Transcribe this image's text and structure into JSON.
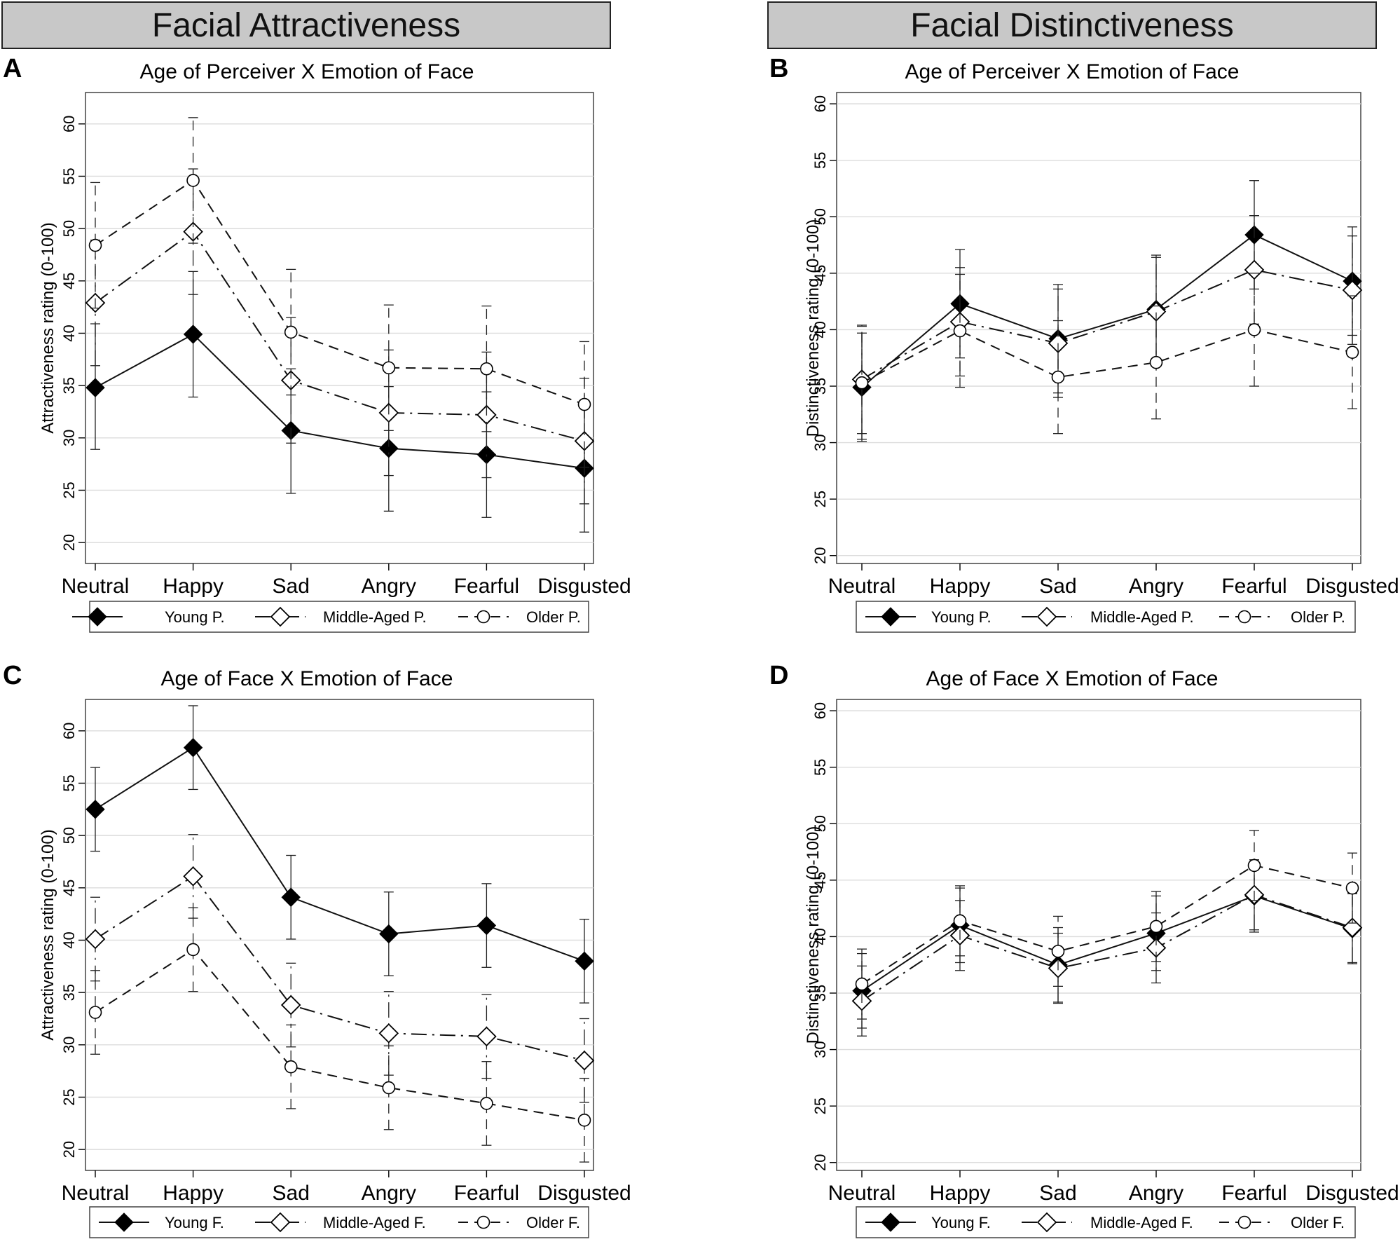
{
  "section_titles": {
    "attractiveness": "Facial Attractiveness",
    "distinctiveness": "Facial Distinctiveness"
  },
  "chart_data": [
    {
      "panel": "A",
      "type": "line",
      "title": "Age of Perceiver X Emotion of Face",
      "ylabel": "Attractiveness rating (0-100)",
      "xlabel": "",
      "ylim": [
        18,
        63
      ],
      "yticks": [
        20,
        25,
        30,
        35,
        40,
        45,
        50,
        55,
        60
      ],
      "categories": [
        "Neutral",
        "Happy",
        "Sad",
        "Angry",
        "Fearful",
        "Disgusted"
      ],
      "series": [
        {
          "name": "Young P.",
          "marker": "diamond-filled",
          "dash": "solid",
          "values": [
            34.8,
            39.9,
            30.7,
            29.0,
            28.4,
            27.1
          ],
          "lower": [
            28.9,
            33.9,
            24.7,
            23.0,
            22.4,
            21.0
          ],
          "upper": [
            40.9,
            45.9,
            36.6,
            34.9,
            34.4,
            33.2
          ]
        },
        {
          "name": "Middle-Aged P.",
          "marker": "diamond-open",
          "dash": "dashdot",
          "values": [
            42.9,
            49.7,
            35.5,
            32.4,
            32.2,
            29.7
          ],
          "lower": [
            36.9,
            43.7,
            29.5,
            26.4,
            26.2,
            23.7
          ],
          "upper": [
            48.9,
            55.7,
            41.5,
            38.4,
            38.2,
            35.7
          ]
        },
        {
          "name": "Older P.",
          "marker": "circle-open",
          "dash": "dashed",
          "values": [
            48.4,
            54.6,
            40.1,
            36.7,
            36.6,
            33.2
          ],
          "lower": [
            42.4,
            48.6,
            34.1,
            30.7,
            30.6,
            27.2
          ],
          "upper": [
            54.4,
            60.6,
            46.1,
            42.7,
            42.6,
            39.2
          ]
        }
      ]
    },
    {
      "panel": "B",
      "type": "line",
      "title": "Age of Perceiver X Emotion of Face",
      "ylabel": "Distinctiveness rating (0-100)",
      "xlabel": "",
      "ylim": [
        19.3,
        61
      ],
      "yticks": [
        20,
        25,
        30,
        35,
        40,
        45,
        50,
        55,
        60
      ],
      "categories": [
        "Neutral",
        "Happy",
        "Sad",
        "Angry",
        "Fearful",
        "Disgusted"
      ],
      "series": [
        {
          "name": "Young P.",
          "marker": "diamond-filled",
          "dash": "solid",
          "values": [
            34.9,
            42.3,
            39.2,
            41.8,
            48.4,
            44.3
          ],
          "lower": [
            30.1,
            37.5,
            34.4,
            37.0,
            43.6,
            39.5
          ],
          "upper": [
            39.7,
            47.1,
            44.0,
            46.6,
            53.2,
            49.1
          ]
        },
        {
          "name": "Middle-Aged P.",
          "marker": "diamond-open",
          "dash": "dashdot",
          "values": [
            35.6,
            40.7,
            38.8,
            41.6,
            45.3,
            43.5
          ],
          "lower": [
            30.8,
            35.9,
            34.0,
            36.8,
            40.5,
            38.7
          ],
          "upper": [
            40.4,
            45.5,
            43.6,
            46.4,
            50.1,
            48.3
          ]
        },
        {
          "name": "Older P.",
          "marker": "circle-open",
          "dash": "dashed",
          "values": [
            35.3,
            39.9,
            35.8,
            37.1,
            40.0,
            38.0
          ],
          "lower": [
            30.3,
            34.9,
            30.8,
            32.1,
            35.0,
            33.0
          ],
          "upper": [
            40.3,
            44.9,
            40.8,
            42.1,
            45.0,
            43.0
          ]
        }
      ]
    },
    {
      "panel": "C",
      "type": "line",
      "title": "Age of Face X Emotion of Face",
      "ylabel": "Attractiveness rating (0-100)",
      "xlabel": "",
      "ylim": [
        18,
        63
      ],
      "yticks": [
        20,
        25,
        30,
        35,
        40,
        45,
        50,
        55,
        60
      ],
      "categories": [
        "Neutral",
        "Happy",
        "Sad",
        "Angry",
        "Fearful",
        "Disgusted"
      ],
      "series": [
        {
          "name": "Young F.",
          "marker": "diamond-filled",
          "dash": "solid",
          "values": [
            52.5,
            58.4,
            44.1,
            40.6,
            41.4,
            38.0
          ],
          "lower": [
            48.5,
            54.4,
            40.1,
            36.6,
            37.4,
            34.0
          ],
          "upper": [
            56.5,
            62.4,
            48.1,
            44.6,
            45.4,
            42.0
          ]
        },
        {
          "name": "Middle-Aged F.",
          "marker": "diamond-open",
          "dash": "dashdot",
          "values": [
            40.1,
            46.1,
            33.8,
            31.1,
            30.8,
            28.5
          ],
          "lower": [
            36.1,
            42.1,
            29.8,
            27.1,
            26.8,
            24.5
          ],
          "upper": [
            44.1,
            50.1,
            37.8,
            35.1,
            34.8,
            32.5
          ]
        },
        {
          "name": "Older F.",
          "marker": "circle-open",
          "dash": "dashed",
          "values": [
            33.1,
            39.1,
            27.9,
            25.9,
            24.4,
            22.8
          ],
          "lower": [
            29.1,
            35.1,
            23.9,
            21.9,
            20.4,
            18.8
          ],
          "upper": [
            37.1,
            43.1,
            31.9,
            29.9,
            28.4,
            26.8
          ]
        }
      ]
    },
    {
      "panel": "D",
      "type": "line",
      "title": "Age of Face X Emotion of Face",
      "ylabel": "Distinctiveness rating (0-100)",
      "xlabel": "",
      "ylim": [
        19.3,
        61
      ],
      "yticks": [
        20,
        25,
        30,
        35,
        40,
        45,
        50,
        55,
        60
      ],
      "categories": [
        "Neutral",
        "Happy",
        "Sad",
        "Angry",
        "Fearful",
        "Disgusted"
      ],
      "series": [
        {
          "name": "Young F.",
          "marker": "diamond-filled",
          "dash": "solid",
          "values": [
            35.2,
            41.0,
            37.5,
            40.3,
            43.6,
            40.7
          ],
          "lower": [
            31.9,
            37.7,
            34.2,
            37.0,
            40.4,
            37.6
          ],
          "upper": [
            38.5,
            44.3,
            40.8,
            43.6,
            46.8,
            43.8
          ]
        },
        {
          "name": "Middle-Aged F.",
          "marker": "diamond-open",
          "dash": "dashdot",
          "values": [
            34.3,
            40.1,
            37.2,
            39.0,
            43.7,
            40.8
          ],
          "lower": [
            31.2,
            37.0,
            34.1,
            35.9,
            40.6,
            37.7
          ],
          "upper": [
            37.4,
            43.2,
            40.3,
            42.1,
            46.8,
            43.9
          ]
        },
        {
          "name": "Older F.",
          "marker": "circle-open",
          "dash": "dashed",
          "values": [
            35.8,
            41.4,
            38.7,
            40.9,
            46.3,
            44.3
          ],
          "lower": [
            32.7,
            38.3,
            35.6,
            37.8,
            43.2,
            41.2
          ],
          "upper": [
            38.9,
            44.5,
            41.8,
            44.0,
            49.4,
            47.4
          ]
        }
      ]
    }
  ]
}
